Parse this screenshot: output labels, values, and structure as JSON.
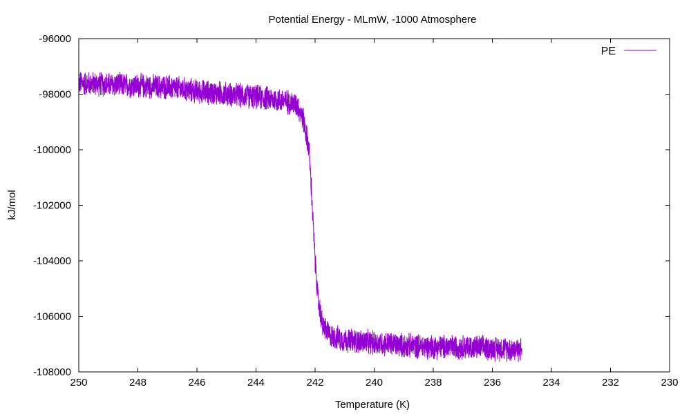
{
  "chart_data": {
    "type": "line",
    "title": "Potential Energy - MLmW, -1000 Atmosphere",
    "xlabel": "Temperature (K)",
    "ylabel": "kJ/mol",
    "xlim": [
      250,
      230
    ],
    "ylim": [
      -108000,
      -96000
    ],
    "x_ticks": [
      "250",
      "248",
      "246",
      "244",
      "242",
      "240",
      "238",
      "236",
      "234",
      "232",
      "230"
    ],
    "y_ticks": [
      "-108000",
      "-106000",
      "-104000",
      "-102000",
      "-100000",
      "-98000",
      "-96000"
    ],
    "grid": false,
    "legend_position": "top-right",
    "series": [
      {
        "name": "PE",
        "color": "#9400d3",
        "noise_band": 500,
        "points": [
          {
            "x": 250.0,
            "y": -97600
          },
          {
            "x": 249.0,
            "y": -97650
          },
          {
            "x": 248.0,
            "y": -97700
          },
          {
            "x": 247.0,
            "y": -97750
          },
          {
            "x": 246.0,
            "y": -97900
          },
          {
            "x": 245.0,
            "y": -98000
          },
          {
            "x": 244.0,
            "y": -98100
          },
          {
            "x": 243.0,
            "y": -98250
          },
          {
            "x": 242.6,
            "y": -98400
          },
          {
            "x": 242.4,
            "y": -98900
          },
          {
            "x": 242.2,
            "y": -100000
          },
          {
            "x": 242.1,
            "y": -102000
          },
          {
            "x": 242.0,
            "y": -104000
          },
          {
            "x": 241.9,
            "y": -105400
          },
          {
            "x": 241.75,
            "y": -106300
          },
          {
            "x": 241.5,
            "y": -106700
          },
          {
            "x": 241.0,
            "y": -106850
          },
          {
            "x": 240.0,
            "y": -106950
          },
          {
            "x": 239.0,
            "y": -107050
          },
          {
            "x": 238.0,
            "y": -107100
          },
          {
            "x": 237.0,
            "y": -107100
          },
          {
            "x": 236.0,
            "y": -107150
          },
          {
            "x": 235.0,
            "y": -107200
          }
        ]
      }
    ]
  }
}
